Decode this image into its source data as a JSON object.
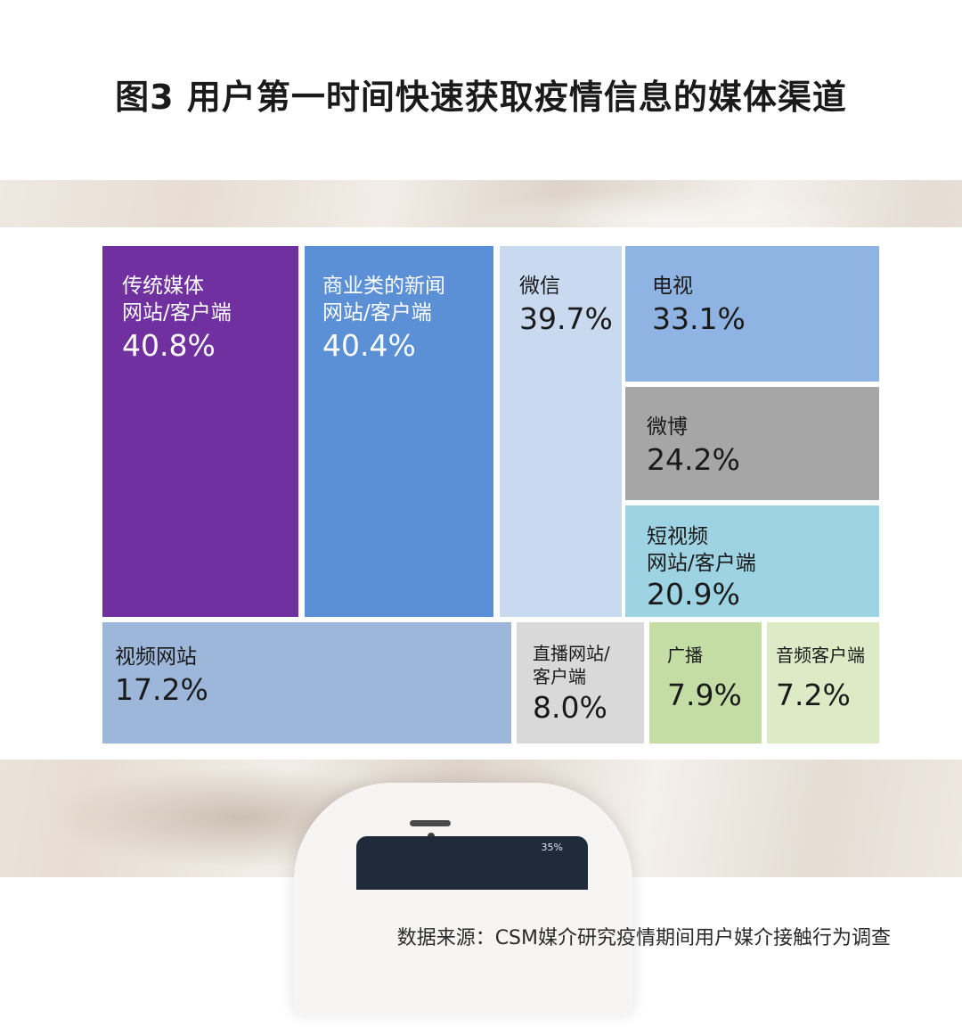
{
  "title": "图3 用户第一时间快速获取疫情信息的媒体渠道",
  "source": "数据来源：CSM媒介研究疫情期间用户媒介接触行为调查",
  "phone_status": "35%",
  "chart_data": {
    "type": "treemap",
    "title": "图3 用户第一时间快速获取疫情信息的媒体渠道",
    "unit": "%",
    "items": [
      {
        "label": "传统媒体\n网站/客户端",
        "value": 40.8,
        "value_text": "40.8%",
        "color": "#7030A0",
        "text_color": "#ffffff"
      },
      {
        "label": "商业类的新闻\n网站/客户端",
        "value": 40.4,
        "value_text": "40.4%",
        "color": "#5B8FD6",
        "text_color": "#ffffff"
      },
      {
        "label": "微信",
        "value": 39.7,
        "value_text": "39.7%",
        "color": "#C9DAF0",
        "text_color": "#1a1a1a"
      },
      {
        "label": "电视",
        "value": 33.1,
        "value_text": "33.1%",
        "color": "#8FB3E2",
        "text_color": "#1a1a1a"
      },
      {
        "label": "微博",
        "value": 24.2,
        "value_text": "24.2%",
        "color": "#A6A6A6",
        "text_color": "#1a1a1a"
      },
      {
        "label": "短视频\n网站/客户端",
        "value": 20.9,
        "value_text": "20.9%",
        "color": "#9DD3E3",
        "text_color": "#1a1a1a"
      },
      {
        "label": "视频网站",
        "value": 17.2,
        "value_text": "17.2%",
        "color": "#9DB7DB",
        "text_color": "#1a1a1a"
      },
      {
        "label": "直播网站/\n客户端",
        "value": 8.0,
        "value_text": "8.0%",
        "color": "#D9D9D9",
        "text_color": "#1a1a1a"
      },
      {
        "label": "广播",
        "value": 7.9,
        "value_text": "7.9%",
        "color": "#C4DDA5",
        "text_color": "#1a1a1a"
      },
      {
        "label": "音频客户端",
        "value": 7.2,
        "value_text": "7.2%",
        "color": "#DCEBC6",
        "text_color": "#1a1a1a"
      }
    ]
  }
}
